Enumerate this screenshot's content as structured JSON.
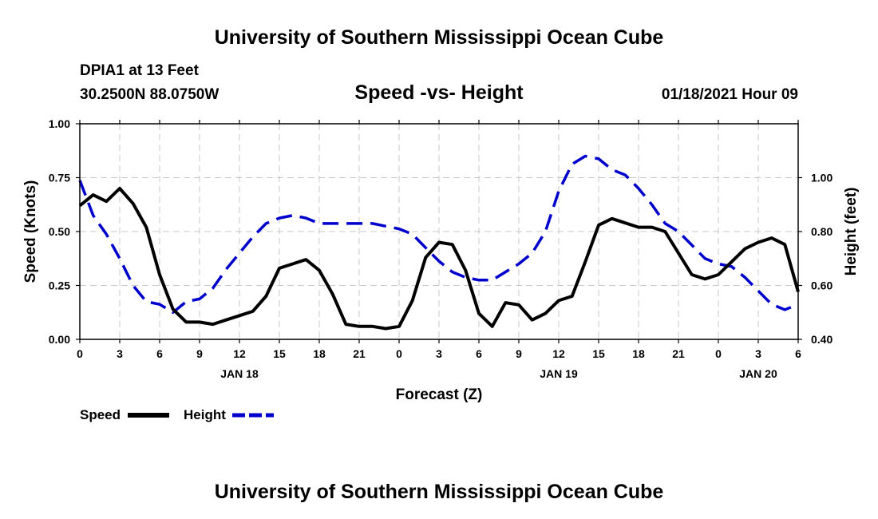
{
  "chart_data": {
    "type": "line",
    "title": "University of Southern Mississippi Ocean Cube",
    "footer_title": "University of Southern Mississippi Ocean Cube",
    "station": "DPIA1 at 13 Feet",
    "location": "30.2500N 88.0750W",
    "subtitle": "Speed -vs- Height",
    "timestamp": "01/18/2021 Hour 09",
    "xlabel": "Forecast (Z)",
    "ylabel_left": "Speed (Knots)",
    "ylabel_right": "Height (feet)",
    "x_hours_range": [
      0,
      54
    ],
    "x_tick_hours": [
      0,
      3,
      6,
      9,
      12,
      15,
      18,
      21,
      24,
      27,
      30,
      33,
      36,
      39,
      42,
      45,
      48,
      51,
      54
    ],
    "x_tick_labels": [
      "0",
      "3",
      "6",
      "9",
      "12",
      "15",
      "18",
      "21",
      "0",
      "3",
      "6",
      "9",
      "12",
      "15",
      "18",
      "21",
      "0",
      "3",
      "6"
    ],
    "date_labels": [
      {
        "hour": 12,
        "text": "JAN 18"
      },
      {
        "hour": 36,
        "text": "JAN 19"
      },
      {
        "hour": 51,
        "text": "JAN 20"
      }
    ],
    "y_left": {
      "range": [
        0,
        1
      ],
      "ticks": [
        0,
        0.25,
        0.5,
        0.75,
        1.0
      ],
      "tick_labels": [
        "0.00",
        "0.25",
        "0.50",
        "0.75",
        "1.00"
      ]
    },
    "y_right": {
      "range": [
        0.4,
        1.2
      ],
      "ticks": [
        0.4,
        0.6,
        0.8,
        1.0
      ],
      "tick_labels": [
        "0.40",
        "0.60",
        "0.80",
        "1.00"
      ]
    },
    "grid": true,
    "series": [
      {
        "name": "Speed",
        "axis": "left",
        "color": "#000000",
        "dash": "solid",
        "x": [
          0,
          1,
          2,
          3,
          4,
          5,
          6,
          7,
          8,
          9,
          10,
          11,
          12,
          13,
          14,
          15,
          16,
          17,
          18,
          19,
          20,
          21,
          22,
          23,
          24,
          25,
          26,
          27,
          28,
          29,
          30,
          31,
          32,
          33,
          34,
          35,
          36,
          37,
          38,
          39,
          40,
          41,
          42,
          43,
          44,
          45,
          46,
          47,
          48,
          49,
          50,
          51,
          52,
          53,
          54
        ],
        "values": [
          0.62,
          0.67,
          0.64,
          0.7,
          0.63,
          0.52,
          0.3,
          0.14,
          0.08,
          0.08,
          0.07,
          0.09,
          0.11,
          0.13,
          0.2,
          0.33,
          0.35,
          0.37,
          0.32,
          0.21,
          0.07,
          0.06,
          0.06,
          0.05,
          0.06,
          0.18,
          0.38,
          0.45,
          0.44,
          0.32,
          0.12,
          0.06,
          0.17,
          0.16,
          0.09,
          0.12,
          0.18,
          0.2,
          0.36,
          0.53,
          0.56,
          0.54,
          0.52,
          0.52,
          0.5,
          0.4,
          0.3,
          0.28,
          0.3,
          0.36,
          0.42,
          0.45,
          0.47,
          0.44,
          0.22
        ]
      },
      {
        "name": "Height",
        "axis": "right",
        "color": "#0000cc",
        "dash": "dashed",
        "x": [
          0,
          1,
          2,
          3,
          4,
          5,
          6,
          7,
          8,
          9,
          10,
          11,
          12,
          13,
          14,
          15,
          16,
          17,
          18,
          19,
          20,
          21,
          22,
          23,
          24,
          25,
          26,
          27,
          28,
          29,
          30,
          31,
          32,
          33,
          34,
          35,
          36,
          37,
          38,
          39,
          40,
          41,
          42,
          43,
          44,
          45,
          46,
          47,
          48,
          49,
          50,
          51,
          52,
          53,
          54
        ],
        "values": [
          0.99,
          0.86,
          0.79,
          0.7,
          0.6,
          0.54,
          0.53,
          0.5,
          0.54,
          0.55,
          0.59,
          0.66,
          0.72,
          0.78,
          0.83,
          0.85,
          0.86,
          0.85,
          0.83,
          0.83,
          0.83,
          0.83,
          0.83,
          0.82,
          0.81,
          0.79,
          0.74,
          0.69,
          0.65,
          0.63,
          0.62,
          0.62,
          0.65,
          0.68,
          0.72,
          0.8,
          0.95,
          1.05,
          1.08,
          1.07,
          1.03,
          1.01,
          0.96,
          0.9,
          0.83,
          0.8,
          0.75,
          0.7,
          0.68,
          0.67,
          0.63,
          0.58,
          0.53,
          0.51,
          0.53
        ]
      }
    ],
    "legend": [
      {
        "label": "Speed",
        "color": "#000000",
        "dash": "solid"
      },
      {
        "label": "Height",
        "color": "#0000cc",
        "dash": "dashed"
      }
    ]
  }
}
